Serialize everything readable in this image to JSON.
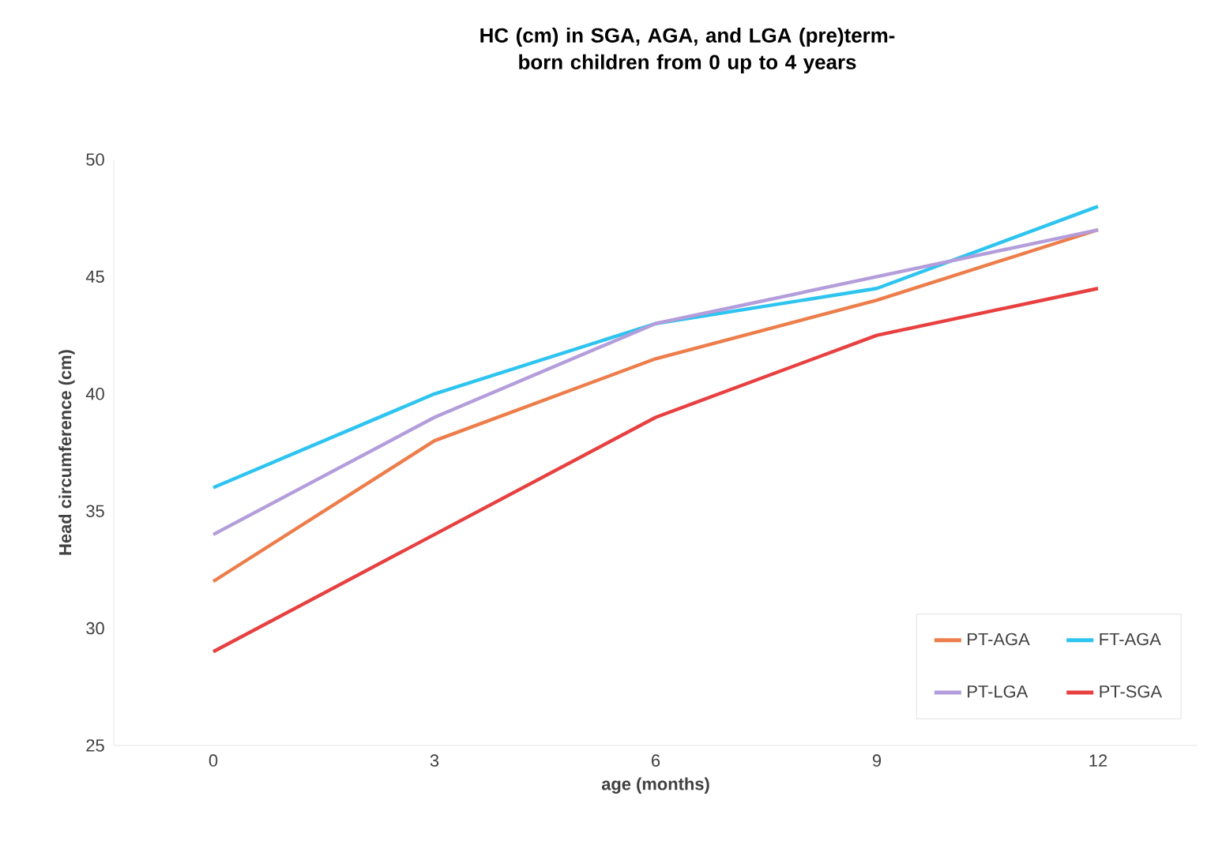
{
  "chart_data": {
    "type": "line",
    "title": "HC (cm) in SGA, AGA, and LGA (pre)term-born children from 0 up to 4 years",
    "xlabel": "age (months)",
    "ylabel": "Head circumference (cm)",
    "categories": [
      "0",
      "3",
      "6",
      "9",
      "12"
    ],
    "series": [
      {
        "name": "PT-AGA",
        "color": "#ed7d4a",
        "values": [
          32,
          38,
          41.5,
          44,
          47
        ]
      },
      {
        "name": "FT-AGA",
        "color": "#2ec4f0",
        "values": [
          36,
          40,
          43,
          44.5,
          48
        ]
      },
      {
        "name": "PT-LGA",
        "color": "#b39ddb",
        "values": [
          34,
          39,
          43,
          45,
          47
        ]
      },
      {
        "name": "PT-SGA",
        "color": "#e84040",
        "values": [
          29,
          34,
          39,
          42.5,
          44.5
        ]
      }
    ],
    "ylim": [
      25,
      50
    ],
    "yticks": [
      25,
      30,
      35,
      40,
      45,
      50
    ],
    "legend": "bottom right",
    "grid": false,
    "marker": "none",
    "line_style": "solid"
  }
}
